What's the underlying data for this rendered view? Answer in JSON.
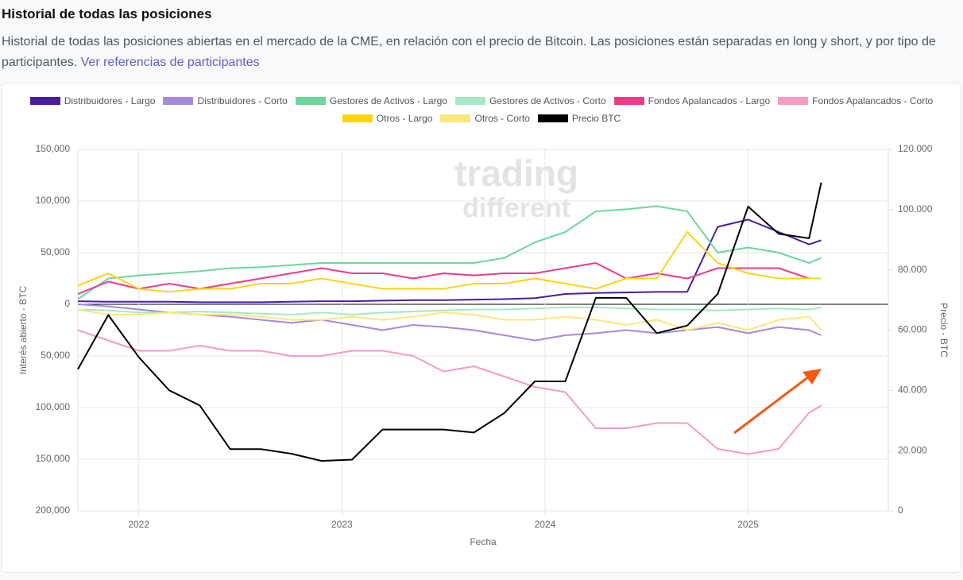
{
  "header": {
    "title": "Historial de todas las posiciones",
    "subtitle": "Historial de todas las posiciones abiertas en el mercado de la CME, en relación con el precio de Bitcoin. Las posiciones están separadas en long y short, y por tipo de participantes.",
    "link": "Ver referencias de participantes"
  },
  "chart_data": {
    "type": "line",
    "watermark_lines": [
      "trading",
      "different"
    ],
    "x_label": "Fecha",
    "y_label": "Interés abierto - BTC",
    "y2_label": "Precio - BTC",
    "x": [
      2021.7,
      2021.85,
      2022.0,
      2022.15,
      2022.3,
      2022.45,
      2022.6,
      2022.75,
      2022.9,
      2023.05,
      2023.2,
      2023.35,
      2023.5,
      2023.65,
      2023.8,
      2023.95,
      2024.1,
      2024.25,
      2024.4,
      2024.55,
      2024.7,
      2024.85,
      2025.0,
      2025.15,
      2025.3,
      2025.36
    ],
    "xlim": [
      2021.7,
      2025.69
    ],
    "xticks": [
      2022,
      2023,
      2024,
      2025
    ],
    "ylim": [
      -200000,
      150000
    ],
    "yticks": [
      {
        "value": 150000,
        "label": "150,000"
      },
      {
        "value": 100000,
        "label": "100,000"
      },
      {
        "value": 50000,
        "label": "50,000"
      },
      0,
      {
        "value": -50000,
        "label": "50,000"
      },
      {
        "value": -100000,
        "label": "100,000"
      },
      {
        "value": -150000,
        "label": "150,000"
      },
      {
        "value": -200000,
        "label": "200,000"
      }
    ],
    "y2lim": [
      0,
      120000
    ],
    "y2ticks": [
      0,
      {
        "value": 20000,
        "label": "20.000"
      },
      {
        "value": 40000,
        "label": "40.000"
      },
      {
        "value": 60000,
        "label": "60.000"
      },
      {
        "value": 80000,
        "label": "80.000"
      },
      {
        "value": 100000,
        "label": "100.000"
      },
      {
        "value": 120000,
        "label": "120.000"
      }
    ],
    "grid": true,
    "series": [
      {
        "name": "Distribuidores - Largo",
        "color": "#4a1d9e",
        "values": [
          3000,
          2500,
          2500,
          2500,
          2000,
          2000,
          2000,
          2500,
          3000,
          3000,
          3500,
          4000,
          4000,
          4500,
          5000,
          6000,
          10000,
          11000,
          11500,
          12000,
          12000,
          75000,
          82000,
          70000,
          58000,
          62000
        ]
      },
      {
        "name": "Distribuidores - Corto",
        "color": "#a58ad8",
        "values": [
          0,
          -2000,
          -5000,
          -8000,
          -10000,
          -12000,
          -15000,
          -18000,
          -15000,
          -20000,
          -25000,
          -20000,
          -22000,
          -25000,
          -30000,
          -35000,
          -30000,
          -28000,
          -25000,
          -28000,
          -25000,
          -22000,
          -28000,
          -22000,
          -25000,
          -30000
        ]
      },
      {
        "name": "Gestores de Activos - Largo",
        "color": "#6dd69c",
        "values": [
          5000,
          25000,
          28000,
          30000,
          32000,
          35000,
          36000,
          38000,
          40000,
          40000,
          40000,
          40000,
          40000,
          40000,
          45000,
          60000,
          70000,
          90000,
          92000,
          95000,
          90000,
          50000,
          55000,
          50000,
          40000,
          45000
        ]
      },
      {
        "name": "Gestores de Activos - Corto",
        "color": "#a6e8c4",
        "values": [
          -5000,
          -6000,
          -8000,
          -8000,
          -7000,
          -8000,
          -9000,
          -10000,
          -8000,
          -10000,
          -8000,
          -7000,
          -6000,
          -5000,
          -5000,
          -4000,
          -3000,
          -3000,
          -4000,
          -5000,
          -5000,
          -6000,
          -5000,
          -4000,
          -5000,
          -3000
        ]
      },
      {
        "name": "Fondos Apalancados - Largo",
        "color": "#ef3a8c",
        "values": [
          10000,
          22000,
          15000,
          20000,
          15000,
          20000,
          25000,
          30000,
          35000,
          30000,
          30000,
          25000,
          30000,
          28000,
          30000,
          30000,
          35000,
          40000,
          25000,
          30000,
          25000,
          35000,
          35000,
          35000,
          25000,
          25000
        ]
      },
      {
        "name": "Fondos Apalancados - Corto",
        "color": "#f89ac6",
        "values": [
          -25000,
          -35000,
          -45000,
          -45000,
          -40000,
          -45000,
          -45000,
          -50000,
          -50000,
          -45000,
          -45000,
          -50000,
          -65000,
          -60000,
          -70000,
          -80000,
          -85000,
          -120000,
          -120000,
          -115000,
          -115000,
          -140000,
          -145000,
          -140000,
          -105000,
          -98000
        ]
      },
      {
        "name": "Otros - Largo",
        "color": "#f9d514",
        "values": [
          18000,
          30000,
          15000,
          12000,
          15000,
          15000,
          20000,
          20000,
          25000,
          20000,
          15000,
          15000,
          15000,
          20000,
          20000,
          25000,
          20000,
          15000,
          25000,
          25000,
          70000,
          40000,
          30000,
          25000,
          25000,
          25000
        ]
      },
      {
        "name": "Otros - Corto",
        "color": "#fbe67e",
        "values": [
          -5000,
          -10000,
          -10000,
          -8000,
          -10000,
          -10000,
          -12000,
          -15000,
          -15000,
          -12000,
          -15000,
          -12000,
          -8000,
          -10000,
          -15000,
          -15000,
          -12000,
          -15000,
          -20000,
          -15000,
          -25000,
          -18000,
          -25000,
          -15000,
          -12000,
          -25000
        ]
      },
      {
        "name": "Precio BTC",
        "color": "#000000",
        "axis": "y2",
        "values": [
          47000,
          65000,
          51000,
          40000,
          35000,
          20500,
          20500,
          19000,
          16600,
          17000,
          27000,
          27000,
          27000,
          26000,
          32500,
          43000,
          43000,
          70700,
          70700,
          59000,
          61500,
          72000,
          101000,
          92000,
          90500,
          109000
        ]
      }
    ]
  }
}
